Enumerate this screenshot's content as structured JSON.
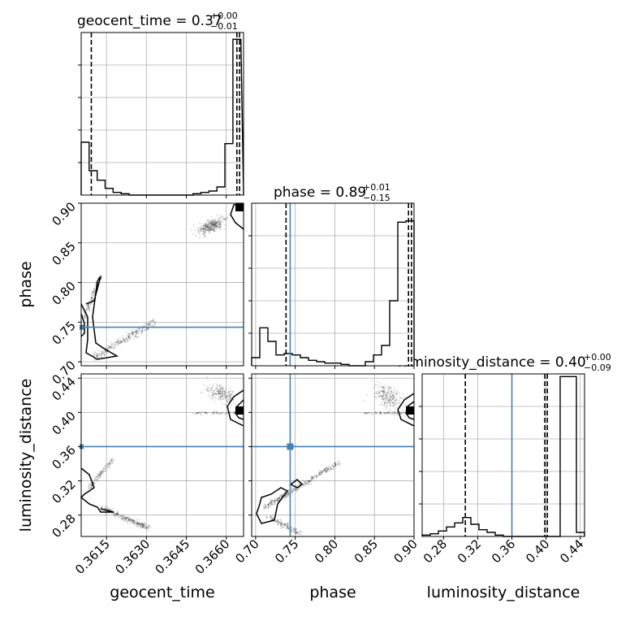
{
  "chart_data": {
    "type": "corner",
    "parameters": [
      "geocent_time",
      "phase",
      "luminosity_distance"
    ],
    "titles": [
      {
        "base": "geocent_time = 0.37",
        "sup": "+0.00",
        "sub": "−0.01"
      },
      {
        "base": "phase = 0.89",
        "sup": "+0.01",
        "sub": "−0.15"
      },
      {
        "base": "luminosity_distance = 0.40",
        "sup": "+0.00",
        "sub": "−0.09"
      }
    ],
    "xlabels": [
      "geocent_time",
      "phase",
      "luminosity_distance"
    ],
    "ylabels": [
      "",
      "phase",
      "luminosity_distance"
    ],
    "ranges": [
      [
        0.36055,
        0.36665
      ],
      [
        0.695,
        0.9
      ],
      [
        0.255,
        0.445
      ]
    ],
    "ticks": [
      [
        "0.3615",
        "0.3630",
        "0.3645",
        "0.3660"
      ],
      [
        "0.70",
        "0.75",
        "0.80",
        "0.85",
        "0.90"
      ],
      [
        "0.28",
        "0.32",
        "0.36",
        "0.40",
        "0.44"
      ]
    ],
    "tick_values": [
      [
        0.3615,
        0.363,
        0.3645,
        0.366
      ],
      [
        0.7,
        0.75,
        0.8,
        0.85,
        0.9
      ],
      [
        0.28,
        0.32,
        0.36,
        0.4,
        0.44
      ]
    ],
    "truths": [
      null,
      0.7436,
      0.36
    ],
    "truth_color": "#4682b4",
    "quantiles": [
      [
        0.36093,
        0.3664,
        0.3665
      ],
      [
        0.7384,
        0.893,
        0.8968
      ],
      [
        0.3055,
        0.3985,
        0.4015
      ]
    ],
    "histograms": [
      {
        "edges_start": 0.36055,
        "bin_width": 0.0003,
        "counts": [
          0.39,
          0.18,
          0.11,
          0.05,
          0.02,
          0.01,
          0.0,
          0.0,
          0.0,
          0.0,
          0.0,
          0.0,
          0.0,
          0.0,
          0.01,
          0.02,
          0.03,
          0.06,
          0.38,
          1.15
        ]
      },
      {
        "edges_start": 0.695,
        "bin_width": 0.01025,
        "counts": [
          0.06,
          0.28,
          0.18,
          0.08,
          0.09,
          0.08,
          0.06,
          0.04,
          0.03,
          0.02,
          0.02,
          0.01,
          0.0,
          0.0,
          0.03,
          0.08,
          0.15,
          0.48,
          1.06,
          1.07
        ]
      },
      {
        "edges_start": 0.255,
        "bin_width": 0.0095,
        "counts": [
          0.01,
          0.02,
          0.04,
          0.07,
          0.1,
          0.14,
          0.09,
          0.05,
          0.03,
          0.01,
          0.0,
          0.0,
          0.0,
          0.0,
          0.0,
          0.0,
          0.0,
          1.18,
          1.18,
          0.03
        ]
      }
    ],
    "grid": true,
    "line_color": "#000000"
  }
}
